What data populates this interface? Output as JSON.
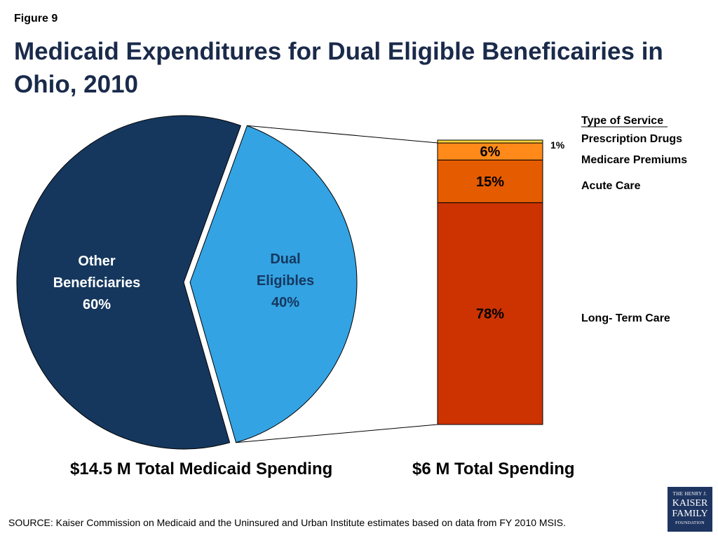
{
  "figure_label": "Figure 9",
  "title_line1": "Medicaid Expenditures for Dual Eligible Beneficairies in",
  "title_line2": "Ohio, 2010",
  "pie_caption": "$14.5 M Total Medicaid Spending",
  "bar_caption": "$6 M Total Spending",
  "legend_title": "Type of Service",
  "source": "SOURCE: Kaiser Commission on Medicaid and the Uninsured and Urban Institute estimates based on data from FY 2010 MSIS.",
  "logo": {
    "line1": "THE HENRY J.",
    "line2": "KAISER",
    "line3": "FAMILY",
    "line4": "FOUNDATION"
  },
  "colors": {
    "other": "#15375e",
    "dual": "#33a3e3",
    "prescription": "#f5d23a",
    "premiums": "#ff8a1a",
    "acute": "#e55b00",
    "ltc": "#cc3300"
  },
  "chart_data": [
    {
      "type": "pie",
      "slices": [
        {
          "label_lines": [
            "Other",
            "Beneficiaries",
            "60%"
          ],
          "value": 60,
          "color": "#15375e"
        },
        {
          "label_lines": [
            "Dual",
            "Eligibles",
            "40%"
          ],
          "value": 40,
          "color": "#33a3e3"
        }
      ]
    },
    {
      "type": "bar",
      "stacked": true,
      "segments": [
        {
          "name": "Long- Term Care",
          "value": 78,
          "label": "78%",
          "color": "#cc3300"
        },
        {
          "name": "Acute Care",
          "value": 15,
          "label": "15%",
          "color": "#e55b00"
        },
        {
          "name": "Medicare Premiums",
          "value": 6,
          "label": "6%",
          "color": "#ff8a1a"
        },
        {
          "name": "Prescription Drugs",
          "value": 1,
          "label": "1%",
          "color": "#f5d23a"
        }
      ]
    }
  ]
}
